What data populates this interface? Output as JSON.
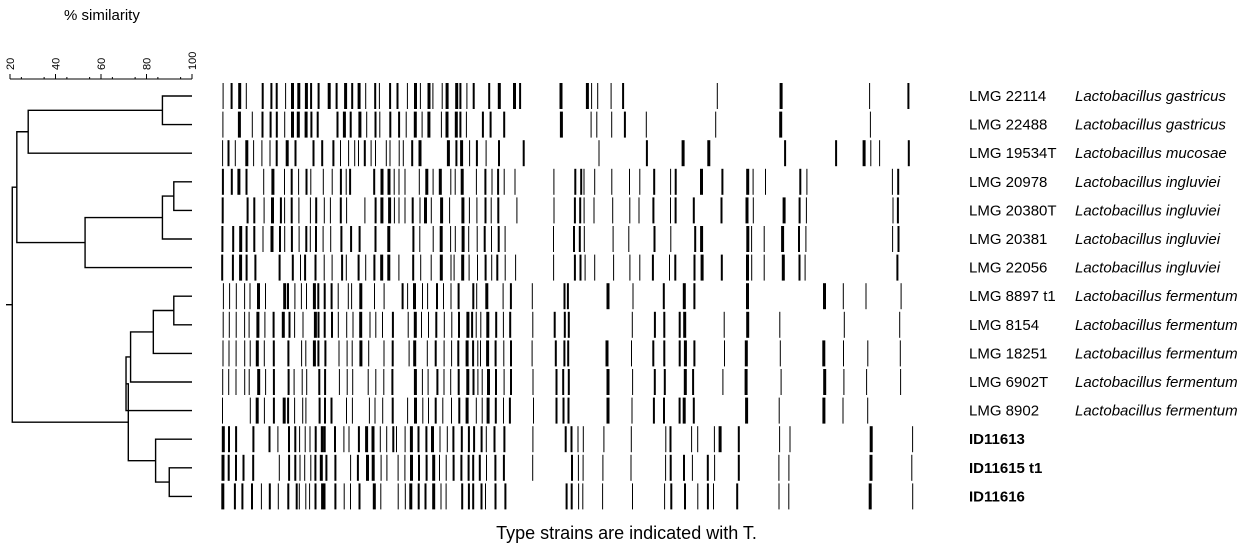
{
  "title": "% similarity",
  "caption": "Type strains are indicated with T.",
  "axis": {
    "ticks": [
      "20",
      "40",
      "60",
      "80",
      "100"
    ],
    "range": [
      20,
      100
    ]
  },
  "rows": [
    {
      "strain": "LMG 22114",
      "species": "Lactobacillus gastricus",
      "bold": false
    },
    {
      "strain": "LMG 22488",
      "species": "Lactobacillus gastricus",
      "bold": false
    },
    {
      "strain": "LMG 19534T",
      "species": "Lactobacillus mucosae",
      "bold": false
    },
    {
      "strain": "LMG 20978",
      "species": "Lactobacillus ingluviei",
      "bold": false
    },
    {
      "strain": "LMG 20380T",
      "species": "Lactobacillus ingluviei",
      "bold": false
    },
    {
      "strain": "LMG 20381",
      "species": "Lactobacillus ingluviei",
      "bold": false
    },
    {
      "strain": "LMG 22056",
      "species": "Lactobacillus ingluviei",
      "bold": false
    },
    {
      "strain": "LMG 8897 t1",
      "species": "Lactobacillus fermentum",
      "bold": false
    },
    {
      "strain": "LMG 8154",
      "species": "Lactobacillus fermentum",
      "bold": false
    },
    {
      "strain": "LMG 18251",
      "species": "Lactobacillus fermentum",
      "bold": false
    },
    {
      "strain": "LMG 6902T",
      "species": "Lactobacillus fermentum",
      "bold": false
    },
    {
      "strain": "LMG 8902",
      "species": "Lactobacillus fermentum",
      "bold": false
    },
    {
      "strain": "ID11613",
      "species": "",
      "bold": true
    },
    {
      "strain": "ID11615 t1",
      "species": "",
      "bold": true
    },
    {
      "strain": "ID11616",
      "species": "",
      "bold": true
    }
  ],
  "dendrogram": [
    {
      "a": 0,
      "b": 1,
      "similarity": 87
    },
    {
      "a": 3,
      "b": 4,
      "similarity": 92
    },
    {
      "a": 7,
      "b": 8,
      "similarity": 92
    },
    {
      "a": 13,
      "b": 14,
      "similarity": 90
    },
    {
      "a": "n1",
      "b": 5,
      "similarity": 87
    },
    {
      "a": "n2",
      "b": 9,
      "similarity": 83
    },
    {
      "a": 12,
      "b": "n3",
      "similarity": 84
    },
    {
      "a": "n4",
      "b": 6,
      "similarity": 53
    },
    {
      "a": "n5",
      "b": 10,
      "similarity": 73
    },
    {
      "a": "n0",
      "b": 2,
      "similarity": 28
    },
    {
      "a": "n8",
      "b": 11,
      "similarity": 71
    },
    {
      "a": "n10",
      "b": "n6",
      "similarity": 72
    },
    {
      "a": "n9",
      "b": "n7",
      "similarity": 23
    },
    {
      "a": "n12",
      "b": "n11",
      "similarity": 21
    }
  ]
}
